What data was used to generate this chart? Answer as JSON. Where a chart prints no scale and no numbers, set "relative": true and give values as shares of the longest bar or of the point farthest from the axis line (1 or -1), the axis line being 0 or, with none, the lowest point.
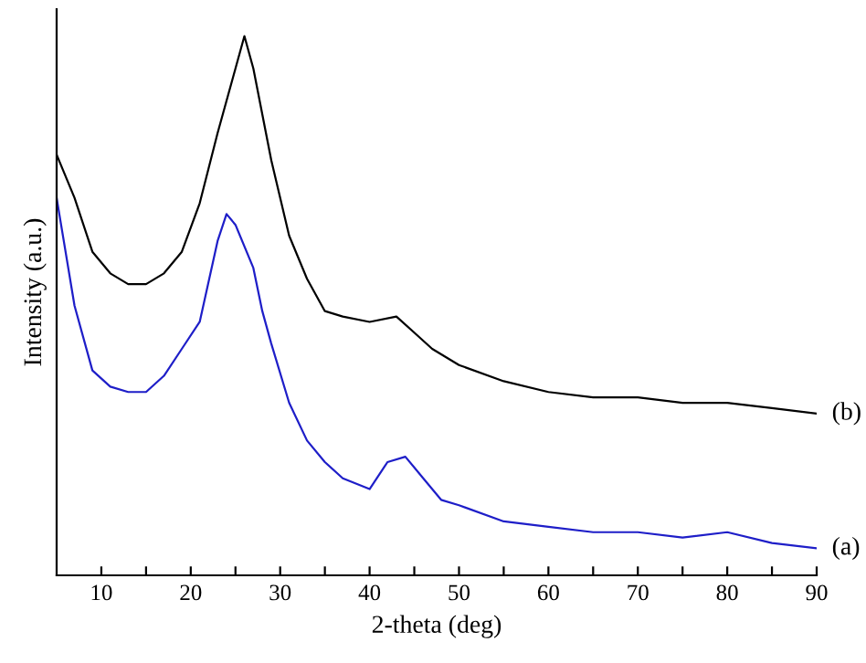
{
  "chart_data": {
    "type": "line",
    "relative": true,
    "xlabel": "2-theta (deg)",
    "ylabel": "Intensity (a.u.)",
    "xlim": [
      5,
      90
    ],
    "xticks": [
      10,
      {
        "value": 15,
        "label": null
      },
      20,
      {
        "value": 25,
        "label": null
      },
      30,
      {
        "value": 35,
        "label": null
      },
      40,
      {
        "value": 45,
        "label": null
      },
      50,
      {
        "value": 55,
        "label": null
      },
      60,
      {
        "value": 65,
        "label": null
      },
      70,
      {
        "value": 75,
        "label": null
      },
      80,
      {
        "value": 85,
        "label": null
      },
      90
    ],
    "tick_labels": "x",
    "grid": false,
    "legend": false,
    "marker": "none",
    "line_style": "solid",
    "series": [
      {
        "name": "(b)",
        "color": "#000000",
        "x": [
          5,
          7,
          9,
          11,
          13,
          15,
          17,
          19,
          21,
          23,
          25,
          26,
          27,
          29,
          31,
          33,
          35,
          37,
          40,
          43,
          45,
          47,
          50,
          55,
          60,
          65,
          70,
          75,
          80,
          85,
          90
        ],
        "values": [
          0.78,
          0.7,
          0.6,
          0.56,
          0.54,
          0.54,
          0.56,
          0.6,
          0.69,
          0.82,
          0.94,
          1,
          0.94,
          0.77,
          0.63,
          0.55,
          0.49,
          0.48,
          0.47,
          0.48,
          0.45,
          0.42,
          0.39,
          0.36,
          0.34,
          0.33,
          0.33,
          0.32,
          0.32,
          0.31,
          0.3
        ]
      },
      {
        "name": "(a)",
        "color": "#1e1ec8",
        "x": [
          5,
          7,
          9,
          11,
          13,
          15,
          17,
          19,
          21,
          23,
          24,
          25,
          27,
          28,
          29,
          31,
          33,
          35,
          37,
          40,
          42,
          44,
          46,
          48,
          50,
          55,
          60,
          65,
          70,
          75,
          80,
          85,
          90
        ],
        "values": [
          0.7,
          0.5,
          0.38,
          0.35,
          0.34,
          0.34,
          0.37,
          0.42,
          0.47,
          0.62,
          0.67,
          0.65,
          0.57,
          0.49,
          0.43,
          0.32,
          0.25,
          0.21,
          0.18,
          0.16,
          0.21,
          0.22,
          0.18,
          0.14,
          0.13,
          0.1,
          0.09,
          0.08,
          0.08,
          0.07,
          0.08,
          0.06,
          0.05
        ]
      }
    ]
  }
}
